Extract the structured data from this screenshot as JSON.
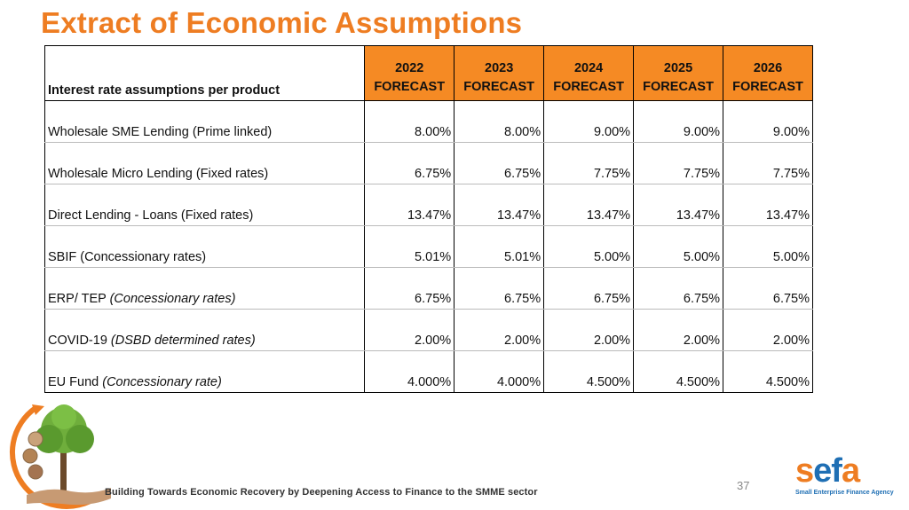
{
  "title": "Extract of Economic Assumptions",
  "table": {
    "label_header": "Interest rate assumptions per product",
    "columns": [
      {
        "year": "2022",
        "sub": "FORECAST"
      },
      {
        "year": "2023",
        "sub": "FORECAST"
      },
      {
        "year": "2024",
        "sub": "FORECAST"
      },
      {
        "year": "2025",
        "sub": "FORECAST"
      },
      {
        "year": "2026",
        "sub": "FORECAST"
      }
    ],
    "rows": [
      {
        "label": "Wholesale SME Lending (Prime linked)",
        "note": "",
        "values": [
          "8.00%",
          "8.00%",
          "9.00%",
          "9.00%",
          "9.00%"
        ]
      },
      {
        "label": "Wholesale Micro Lending (Fixed rates)",
        "note": "",
        "values": [
          "6.75%",
          "6.75%",
          "7.75%",
          "7.75%",
          "7.75%"
        ]
      },
      {
        "label": "Direct Lending - Loans (Fixed rates)",
        "note": "",
        "values": [
          "13.47%",
          "13.47%",
          "13.47%",
          "13.47%",
          "13.47%"
        ]
      },
      {
        "label": "SBIF (Concessionary rates)",
        "note": "",
        "values": [
          "5.01%",
          "5.01%",
          "5.00%",
          "5.00%",
          "5.00%"
        ]
      },
      {
        "label": "ERP/ TEP ",
        "note": "(Concessionary rates)",
        "values": [
          "6.75%",
          "6.75%",
          "6.75%",
          "6.75%",
          "6.75%"
        ]
      },
      {
        "label": "COVID-19 ",
        "note": "(DSBD determined rates)",
        "values": [
          "2.00%",
          "2.00%",
          "2.00%",
          "2.00%",
          "2.00%"
        ]
      },
      {
        "label": "EU Fund ",
        "note": "(Concessionary rate)",
        "values": [
          "4.000%",
          "4.000%",
          "4.500%",
          "4.500%",
          "4.500%"
        ]
      }
    ]
  },
  "footer": {
    "tagline": "Building Towards Economic Recovery by Deepening Access to Finance to the SMME sector",
    "page_number": "37"
  },
  "brand": {
    "name_part1": "s",
    "name_part2": "ef",
    "name_part3": "a",
    "tagline": "Small Enterprise Finance Agency"
  },
  "colors": {
    "accent": "#ee7d22",
    "header_fill": "#f58a24",
    "brand_blue": "#1f6fb4"
  },
  "icons": [
    "tree-hand-logo"
  ]
}
